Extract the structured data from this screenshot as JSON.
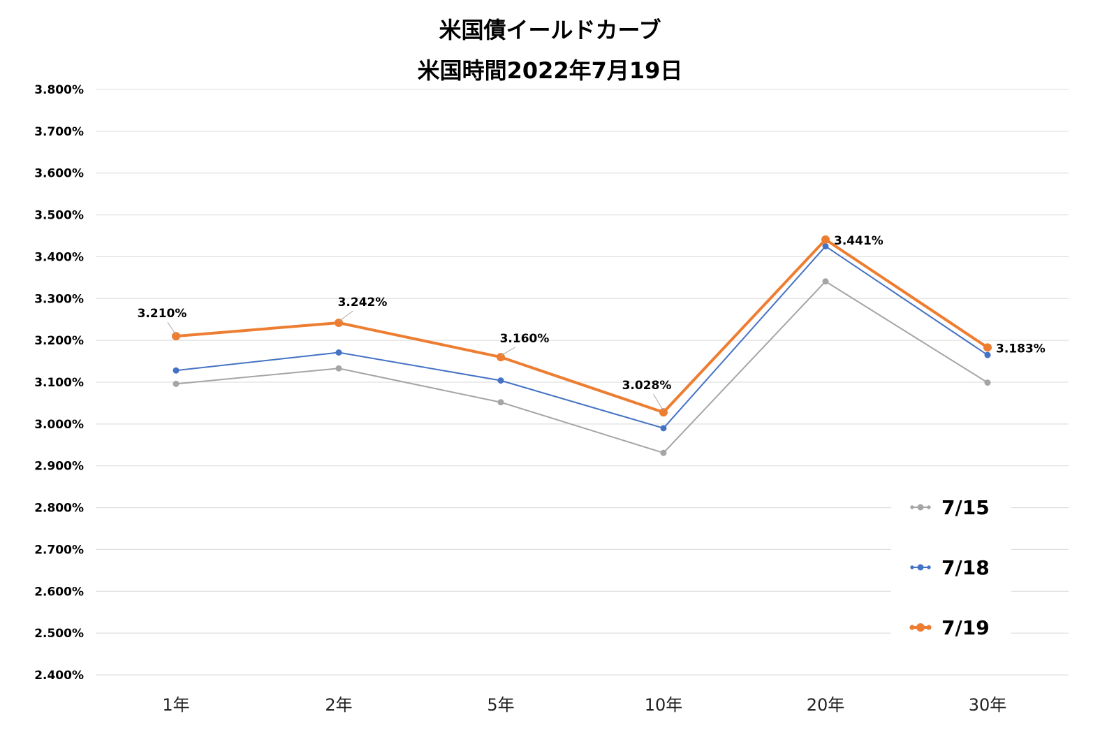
{
  "chart_data": {
    "type": "line",
    "title": "米国債イールドカーブ",
    "subtitle": "米国時間2022年7月19日",
    "categories": [
      "1年",
      "2年",
      "5年",
      "10年",
      "20年",
      "30年"
    ],
    "ylim": [
      2.4,
      3.8
    ],
    "yticks": [
      "3.800%",
      "3.700%",
      "3.600%",
      "3.500%",
      "3.400%",
      "3.300%",
      "3.200%",
      "3.100%",
      "3.000%",
      "2.900%",
      "2.800%",
      "2.700%",
      "2.600%",
      "2.500%",
      "2.400%"
    ],
    "grid": true,
    "legend_position": "bottom-right",
    "series": [
      {
        "name": "7/15",
        "color": "#A5A5A5",
        "values": [
          3.096,
          3.133,
          3.052,
          2.931,
          3.341,
          3.099
        ]
      },
      {
        "name": "7/18",
        "color": "#4472C4",
        "values": [
          3.128,
          3.171,
          3.104,
          2.99,
          3.425,
          3.165
        ]
      },
      {
        "name": "7/19",
        "color": "#ED7D31",
        "values": [
          3.21,
          3.242,
          3.16,
          3.028,
          3.441,
          3.183
        ],
        "data_labels": [
          "3.210%",
          "3.242%",
          "3.160%",
          "3.028%",
          "3.441%",
          "3.183%"
        ]
      }
    ]
  }
}
